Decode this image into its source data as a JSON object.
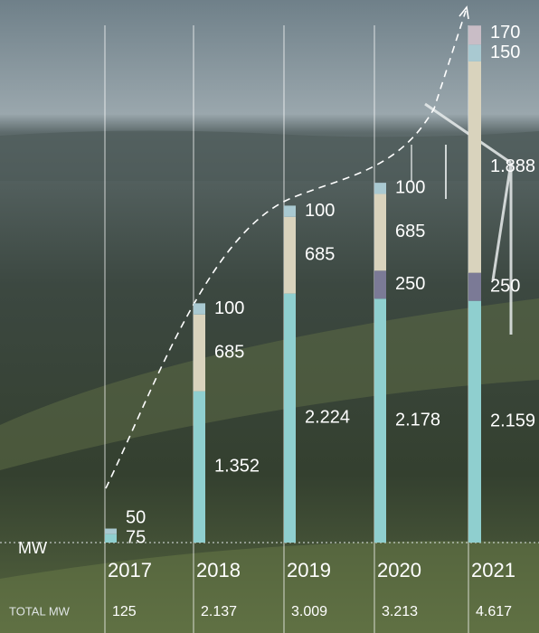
{
  "chart_data": {
    "type": "stacked-bar",
    "y_label": "MW",
    "categories": [
      "2017",
      "2018",
      "2019",
      "2020",
      "2021"
    ],
    "series": [
      {
        "color": "#8fcfcf",
        "values": [
          75,
          1352,
          2224,
          2178,
          2159
        ],
        "value_labels": [
          "75",
          "1.352",
          "2.224",
          "2.178",
          "2.159"
        ]
      },
      {
        "color": "#7b7a96",
        "values": [
          null,
          null,
          null,
          250,
          250
        ],
        "value_labels": [
          null,
          null,
          null,
          "250",
          "250"
        ]
      },
      {
        "color": "#d9d3bd",
        "values": [
          null,
          685,
          685,
          685,
          1888
        ],
        "value_labels": [
          null,
          "685",
          "685",
          "685",
          "1.888"
        ]
      },
      {
        "color": "#a9c9d1",
        "values": [
          50,
          100,
          100,
          100,
          150
        ],
        "value_labels": [
          "50",
          "100",
          "100",
          "100",
          "150"
        ]
      },
      {
        "color": "#c9bdc6",
        "values": [
          null,
          null,
          null,
          null,
          170
        ],
        "value_labels": [
          null,
          null,
          null,
          null,
          "170"
        ]
      }
    ],
    "totals_label": "TOTAL MW",
    "totals": [
      {
        "value": 125,
        "label": "125"
      },
      {
        "value": 2137,
        "label": "2.137"
      },
      {
        "value": 3009,
        "label": "3.009"
      },
      {
        "value": 3213,
        "label": "3.213"
      },
      {
        "value": 4617,
        "label": "4.617"
      }
    ],
    "ylim": [
      0,
      4700
    ]
  }
}
